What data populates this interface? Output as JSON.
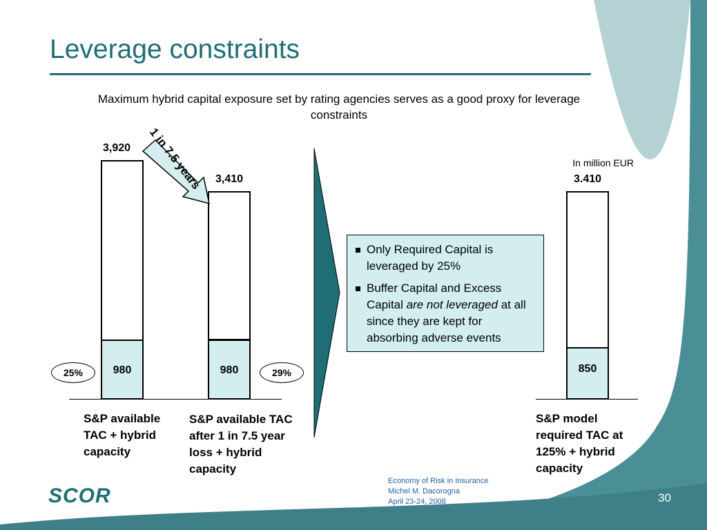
{
  "slide": {
    "title": "Leverage constraints",
    "subtitle": "Maximum hybrid capital exposure set by rating agencies serves as a good proxy for leverage constraints",
    "unit_note": "In million EUR",
    "page_number": "30"
  },
  "annotations": {
    "arrow_label": "1 in 7.5 years",
    "pct_left": "25%",
    "pct_right": "29%"
  },
  "note_box": {
    "bullet1": "Only Required Capital is leveraged by 25%",
    "bullet2_pre": "Buffer Capital and Excess Capital ",
    "bullet2_em": "are not leveraged",
    "bullet2_post": " at all since they are kept for absorbing adverse events"
  },
  "footer": {
    "line1": "Economy of Risk in Insurance",
    "line2": "Michel M. Dacorogna",
    "line3": "April 23-24, 2008"
  },
  "logo": {
    "text": "SCOR"
  },
  "colors": {
    "teal": "#1f6e76",
    "light_teal": "#d4eef0",
    "side_panel": "#4a8e96"
  },
  "chart_data": {
    "type": "bar",
    "stacked": true,
    "unit": "In million EUR",
    "bars": [
      {
        "total": 3920,
        "bottom": 980,
        "total_label": "3,920",
        "bottom_label": "980",
        "caption": "S&P available TAC + hybrid capacity"
      },
      {
        "total": 3410,
        "bottom": 980,
        "total_label": "3,410",
        "bottom_label": "980",
        "caption": "S&P available TAC after 1 in 7.5 year loss + hybrid capacity"
      },
      {
        "total": 3410,
        "bottom": 850,
        "total_label": "3.410",
        "bottom_label": "850",
        "caption": "S&P model required TAC at 125% + hybrid capacity"
      }
    ]
  }
}
